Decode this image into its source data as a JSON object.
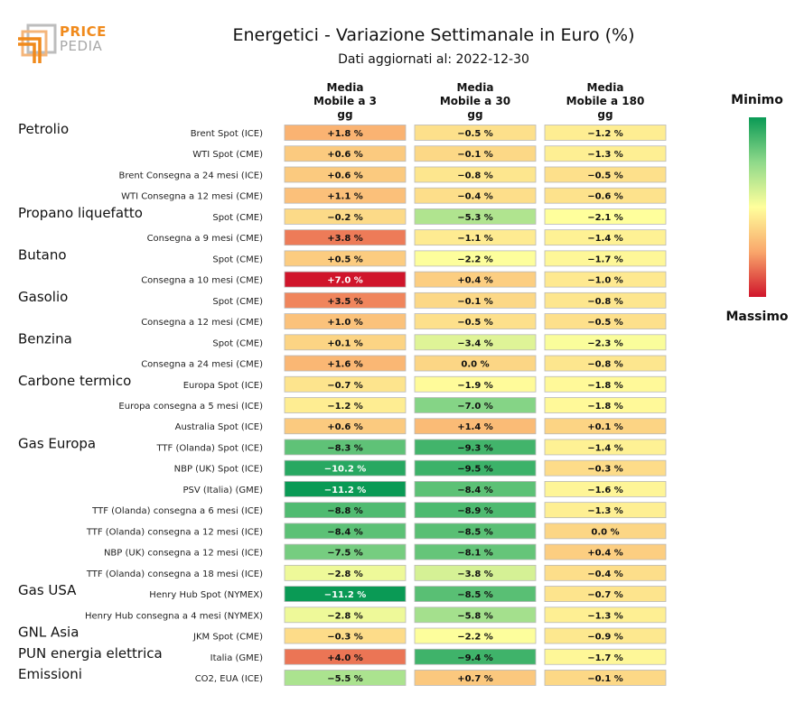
{
  "logo": {
    "line1": "PRICE",
    "line2": "PEDIA"
  },
  "chart_data": {
    "type": "heatmap",
    "title": "Energetici - Variazione Settimanale in Euro (%)",
    "subtitle": "Dati aggiornati al: 2022-12-30",
    "columns": [
      [
        "Media",
        "Mobile a 3",
        "gg"
      ],
      [
        "Media",
        "Mobile a 30",
        "gg"
      ],
      [
        "Media",
        "Mobile a 180",
        "gg"
      ]
    ],
    "colorbar": {
      "min_label": "Minimo",
      "max_label": "Massimo"
    },
    "groups": [
      {
        "name": "Petrolio",
        "rows": [
          {
            "label": "Brent Spot (ICE)",
            "values": [
              1.8,
              -0.5,
              -1.2
            ],
            "display": [
              "+1.8 %",
              "−0.5 %",
              "−1.2 %"
            ]
          },
          {
            "label": "WTI Spot (CME)",
            "values": [
              0.6,
              -0.1,
              -1.3
            ],
            "display": [
              "+0.6 %",
              "−0.1 %",
              "−1.3 %"
            ]
          },
          {
            "label": "Brent Consegna a 24 mesi (ICE)",
            "values": [
              0.6,
              -0.8,
              -0.5
            ],
            "display": [
              "+0.6 %",
              "−0.8 %",
              "−0.5 %"
            ]
          },
          {
            "label": "WTI Consegna a 12 mesi (CME)",
            "values": [
              1.1,
              -0.4,
              -0.6
            ],
            "display": [
              "+1.1 %",
              "−0.4 %",
              "−0.6 %"
            ]
          }
        ]
      },
      {
        "name": "Propano liquefatto",
        "rows": [
          {
            "label": "Spot (CME)",
            "values": [
              -0.2,
              -5.3,
              -2.1
            ],
            "display": [
              "−0.2 %",
              "−5.3 %",
              "−2.1 %"
            ]
          },
          {
            "label": "Consegna a 9 mesi (CME)",
            "values": [
              3.8,
              -1.1,
              -1.4
            ],
            "display": [
              "+3.8 %",
              "−1.1 %",
              "−1.4 %"
            ]
          }
        ]
      },
      {
        "name": "Butano",
        "rows": [
          {
            "label": "Spot (CME)",
            "values": [
              0.5,
              -2.2,
              -1.7
            ],
            "display": [
              "+0.5 %",
              "−2.2 %",
              "−1.7 %"
            ]
          },
          {
            "label": "Consegna a 10 mesi (CME)",
            "values": [
              7.0,
              0.4,
              -1.0
            ],
            "display": [
              "+7.0 %",
              "+0.4 %",
              "−1.0 %"
            ]
          }
        ]
      },
      {
        "name": "Gasolio",
        "rows": [
          {
            "label": "Spot (CME)",
            "values": [
              3.5,
              -0.1,
              -0.8
            ],
            "display": [
              "+3.5 %",
              "−0.1 %",
              "−0.8 %"
            ]
          },
          {
            "label": "Consegna a 12 mesi (CME)",
            "values": [
              1.0,
              -0.5,
              -0.5
            ],
            "display": [
              "+1.0 %",
              "−0.5 %",
              "−0.5 %"
            ]
          }
        ]
      },
      {
        "name": "Benzina",
        "rows": [
          {
            "label": "Spot (CME)",
            "values": [
              0.1,
              -3.4,
              -2.3
            ],
            "display": [
              "+0.1 %",
              "−3.4 %",
              "−2.3 %"
            ]
          },
          {
            "label": "Consegna a 24 mesi (CME)",
            "values": [
              1.6,
              0.0,
              -0.8
            ],
            "display": [
              "+1.6 %",
              "0.0 %",
              "−0.8 %"
            ]
          }
        ]
      },
      {
        "name": "Carbone termico",
        "rows": [
          {
            "label": "Europa Spot (ICE)",
            "values": [
              -0.7,
              -1.9,
              -1.8
            ],
            "display": [
              "−0.7 %",
              "−1.9 %",
              "−1.8 %"
            ]
          },
          {
            "label": "Europa consegna a 5 mesi (ICE)",
            "values": [
              -1.2,
              -7.0,
              -1.8
            ],
            "display": [
              "−1.2 %",
              "−7.0 %",
              "−1.8 %"
            ]
          },
          {
            "label": "Australia Spot (ICE)",
            "values": [
              0.6,
              1.4,
              0.1
            ],
            "display": [
              "+0.6 %",
              "+1.4 %",
              "+0.1 %"
            ]
          }
        ]
      },
      {
        "name": "Gas Europa",
        "rows": [
          {
            "label": "TTF (Olanda) Spot (ICE)",
            "values": [
              -8.3,
              -9.3,
              -1.4
            ],
            "display": [
              "−8.3 %",
              "−9.3 %",
              "−1.4 %"
            ]
          },
          {
            "label": "NBP (UK) Spot (ICE)",
            "values": [
              -10.2,
              -9.5,
              -0.3
            ],
            "display": [
              "−10.2 %",
              "−9.5 %",
              "−0.3 %"
            ]
          },
          {
            "label": "PSV (Italia) (GME)",
            "values": [
              -11.2,
              -8.4,
              -1.6
            ],
            "display": [
              "−11.2 %",
              "−8.4 %",
              "−1.6 %"
            ]
          },
          {
            "label": "TTF (Olanda) consegna a 6 mesi (ICE)",
            "values": [
              -8.8,
              -8.9,
              -1.3
            ],
            "display": [
              "−8.8 %",
              "−8.9 %",
              "−1.3 %"
            ]
          },
          {
            "label": "TTF (Olanda) consegna a 12 mesi (ICE)",
            "values": [
              -8.4,
              -8.5,
              0.0
            ],
            "display": [
              "−8.4 %",
              "−8.5 %",
              "0.0 %"
            ]
          },
          {
            "label": "NBP (UK) consegna a 12 mesi (ICE)",
            "values": [
              -7.5,
              -8.1,
              0.4
            ],
            "display": [
              "−7.5 %",
              "−8.1 %",
              "+0.4 %"
            ]
          },
          {
            "label": "TTF (Olanda) consegna a 18 mesi (ICE)",
            "values": [
              -2.8,
              -3.8,
              -0.4
            ],
            "display": [
              "−2.8 %",
              "−3.8 %",
              "−0.4 %"
            ]
          }
        ]
      },
      {
        "name": "Gas USA",
        "rows": [
          {
            "label": "Henry Hub Spot (NYMEX)",
            "values": [
              -11.2,
              -8.5,
              -0.7
            ],
            "display": [
              "−11.2 %",
              "−8.5 %",
              "−0.7 %"
            ]
          },
          {
            "label": "Henry Hub consegna a 4 mesi (NYMEX)",
            "values": [
              -2.8,
              -5.8,
              -1.3
            ],
            "display": [
              "−2.8 %",
              "−5.8 %",
              "−1.3 %"
            ]
          }
        ]
      },
      {
        "name": "GNL Asia",
        "rows": [
          {
            "label": "JKM Spot (CME)",
            "values": [
              -0.3,
              -2.2,
              -0.9
            ],
            "display": [
              "−0.3 %",
              "−2.2 %",
              "−0.9 %"
            ]
          }
        ]
      },
      {
        "name": "PUN energia elettrica",
        "rows": [
          {
            "label": "Italia (GME)",
            "values": [
              4.0,
              -9.4,
              -1.7
            ],
            "display": [
              "+4.0 %",
              "−9.4 %",
              "−1.7 %"
            ]
          }
        ]
      },
      {
        "name": "Emissioni",
        "rows": [
          {
            "label": "CO2, EUA (ICE)",
            "values": [
              -5.5,
              0.7,
              -0.1
            ],
            "display": [
              "−5.5 %",
              "+0.7 %",
              "−0.1 %"
            ]
          }
        ]
      }
    ]
  }
}
